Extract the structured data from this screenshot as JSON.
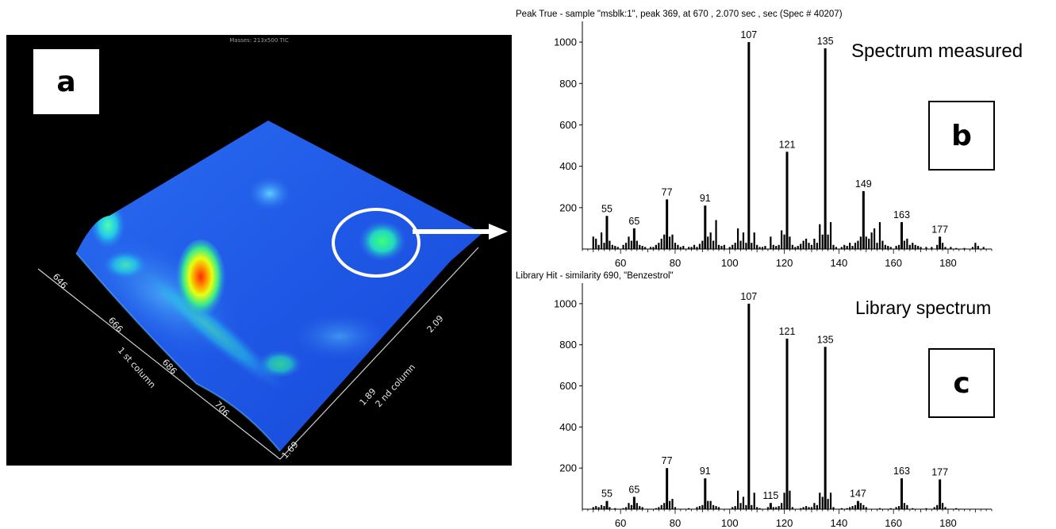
{
  "surface": {
    "header": "Masses: 213x500 TIC",
    "panel_label": "a",
    "axis1_title": "1 st column",
    "axis2_title": "2 nd column",
    "axis1_ticks": [
      "646",
      "666",
      "686",
      "706"
    ],
    "axis2_ticks": [
      "1.69",
      "1.89",
      "2.09"
    ]
  },
  "measured": {
    "title": "Peak True - sample \"msblk:1\", peak 369, at 670 , 2.070 sec , sec (Spec # 40207)",
    "caption": "Spectrum measured",
    "panel_label": "b"
  },
  "library": {
    "title": "Library Hit - similarity 690, \"Benzestrol\"",
    "caption": "Library spectrum",
    "panel_label": "c"
  },
  "chart_data": [
    {
      "type": "bar",
      "title": "Peak True - sample \"msblk:1\", peak 369, at 670 , 2.070 sec , sec (Spec # 40207)",
      "xlim": [
        46,
        196
      ],
      "ylim": [
        0,
        1100
      ],
      "xticks": [
        60,
        80,
        100,
        120,
        140,
        160,
        180
      ],
      "yticks": [
        200,
        400,
        600,
        800,
        1000
      ],
      "peak_labels": [
        55,
        65,
        77,
        91,
        107,
        121,
        135,
        149,
        163,
        177
      ],
      "points": [
        [
          50,
          60
        ],
        [
          51,
          50
        ],
        [
          52,
          20
        ],
        [
          53,
          80
        ],
        [
          54,
          30
        ],
        [
          55,
          160
        ],
        [
          56,
          40
        ],
        [
          57,
          20
        ],
        [
          58,
          15
        ],
        [
          59,
          10
        ],
        [
          61,
          20
        ],
        [
          62,
          30
        ],
        [
          63,
          60
        ],
        [
          64,
          40
        ],
        [
          65,
          100
        ],
        [
          66,
          40
        ],
        [
          67,
          20
        ],
        [
          68,
          15
        ],
        [
          69,
          10
        ],
        [
          71,
          10
        ],
        [
          72,
          10
        ],
        [
          73,
          20
        ],
        [
          74,
          30
        ],
        [
          75,
          50
        ],
        [
          76,
          70
        ],
        [
          77,
          240
        ],
        [
          78,
          60
        ],
        [
          79,
          70
        ],
        [
          80,
          30
        ],
        [
          81,
          20
        ],
        [
          82,
          10
        ],
        [
          83,
          15
        ],
        [
          85,
          10
        ],
        [
          86,
          10
        ],
        [
          87,
          20
        ],
        [
          88,
          10
        ],
        [
          89,
          25
        ],
        [
          90,
          40
        ],
        [
          91,
          210
        ],
        [
          92,
          60
        ],
        [
          93,
          80
        ],
        [
          94,
          40
        ],
        [
          95,
          140
        ],
        [
          96,
          20
        ],
        [
          97,
          15
        ],
        [
          98,
          20
        ],
        [
          100,
          10
        ],
        [
          101,
          20
        ],
        [
          102,
          30
        ],
        [
          103,
          100
        ],
        [
          104,
          40
        ],
        [
          105,
          80
        ],
        [
          106,
          30
        ],
        [
          107,
          1000
        ],
        [
          108,
          30
        ],
        [
          109,
          80
        ],
        [
          110,
          20
        ],
        [
          111,
          10
        ],
        [
          112,
          10
        ],
        [
          113,
          15
        ],
        [
          115,
          60
        ],
        [
          116,
          20
        ],
        [
          117,
          15
        ],
        [
          118,
          20
        ],
        [
          119,
          90
        ],
        [
          120,
          70
        ],
        [
          121,
          470
        ],
        [
          122,
          60
        ],
        [
          123,
          20
        ],
        [
          124,
          10
        ],
        [
          125,
          15
        ],
        [
          126,
          25
        ],
        [
          127,
          40
        ],
        [
          128,
          50
        ],
        [
          129,
          30
        ],
        [
          130,
          20
        ],
        [
          131,
          50
        ],
        [
          132,
          30
        ],
        [
          133,
          120
        ],
        [
          134,
          70
        ],
        [
          135,
          970
        ],
        [
          136,
          70
        ],
        [
          137,
          130
        ],
        [
          138,
          20
        ],
        [
          139,
          10
        ],
        [
          141,
          10
        ],
        [
          142,
          20
        ],
        [
          143,
          15
        ],
        [
          144,
          30
        ],
        [
          145,
          15
        ],
        [
          146,
          30
        ],
        [
          147,
          40
        ],
        [
          148,
          60
        ],
        [
          149,
          280
        ],
        [
          150,
          60
        ],
        [
          151,
          50
        ],
        [
          152,
          80
        ],
        [
          153,
          100
        ],
        [
          154,
          30
        ],
        [
          155,
          130
        ],
        [
          156,
          40
        ],
        [
          157,
          20
        ],
        [
          158,
          15
        ],
        [
          159,
          10
        ],
        [
          161,
          15
        ],
        [
          162,
          20
        ],
        [
          163,
          130
        ],
        [
          164,
          40
        ],
        [
          165,
          50
        ],
        [
          166,
          20
        ],
        [
          167,
          30
        ],
        [
          168,
          20
        ],
        [
          169,
          15
        ],
        [
          170,
          10
        ],
        [
          172,
          10
        ],
        [
          174,
          10
        ],
        [
          176,
          20
        ],
        [
          177,
          60
        ],
        [
          178,
          30
        ],
        [
          179,
          10
        ],
        [
          181,
          10
        ],
        [
          183,
          5
        ],
        [
          186,
          5
        ],
        [
          189,
          10
        ],
        [
          190,
          30
        ],
        [
          191,
          15
        ],
        [
          193,
          10
        ]
      ]
    },
    {
      "type": "bar",
      "title": "Library Hit - similarity 690, \"Benzestrol\"",
      "xlim": [
        46,
        196
      ],
      "ylim": [
        0,
        1100
      ],
      "xticks": [
        60,
        80,
        100,
        120,
        140,
        160,
        180
      ],
      "yticks": [
        200,
        400,
        600,
        800,
        1000
      ],
      "peak_labels": [
        55,
        65,
        77,
        91,
        107,
        115,
        121,
        135,
        147,
        163,
        177
      ],
      "points": [
        [
          50,
          10
        ],
        [
          51,
          15
        ],
        [
          52,
          10
        ],
        [
          53,
          20
        ],
        [
          54,
          15
        ],
        [
          55,
          40
        ],
        [
          56,
          10
        ],
        [
          58,
          5
        ],
        [
          61,
          5
        ],
        [
          62,
          10
        ],
        [
          63,
          30
        ],
        [
          64,
          20
        ],
        [
          65,
          60
        ],
        [
          66,
          30
        ],
        [
          67,
          15
        ],
        [
          68,
          10
        ],
        [
          73,
          5
        ],
        [
          74,
          10
        ],
        [
          75,
          20
        ],
        [
          76,
          30
        ],
        [
          77,
          200
        ],
        [
          78,
          40
        ],
        [
          79,
          50
        ],
        [
          80,
          10
        ],
        [
          85,
          5
        ],
        [
          88,
          10
        ],
        [
          89,
          15
        ],
        [
          90,
          20
        ],
        [
          91,
          150
        ],
        [
          92,
          40
        ],
        [
          93,
          40
        ],
        [
          94,
          20
        ],
        [
          95,
          15
        ],
        [
          96,
          10
        ],
        [
          101,
          10
        ],
        [
          102,
          15
        ],
        [
          103,
          90
        ],
        [
          104,
          30
        ],
        [
          105,
          60
        ],
        [
          106,
          20
        ],
        [
          107,
          1000
        ],
        [
          108,
          20
        ],
        [
          109,
          80
        ],
        [
          110,
          10
        ],
        [
          111,
          5
        ],
        [
          114,
          10
        ],
        [
          115,
          30
        ],
        [
          116,
          10
        ],
        [
          117,
          10
        ],
        [
          118,
          15
        ],
        [
          119,
          30
        ],
        [
          120,
          80
        ],
        [
          121,
          830
        ],
        [
          122,
          90
        ],
        [
          123,
          10
        ],
        [
          126,
          5
        ],
        [
          127,
          10
        ],
        [
          128,
          15
        ],
        [
          129,
          10
        ],
        [
          130,
          10
        ],
        [
          131,
          30
        ],
        [
          132,
          20
        ],
        [
          133,
          80
        ],
        [
          134,
          60
        ],
        [
          135,
          790
        ],
        [
          136,
          50
        ],
        [
          137,
          80
        ],
        [
          138,
          10
        ],
        [
          141,
          5
        ],
        [
          143,
          5
        ],
        [
          144,
          10
        ],
        [
          145,
          15
        ],
        [
          146,
          20
        ],
        [
          147,
          40
        ],
        [
          148,
          30
        ],
        [
          149,
          20
        ],
        [
          150,
          10
        ],
        [
          155,
          5
        ],
        [
          159,
          5
        ],
        [
          161,
          10
        ],
        [
          162,
          15
        ],
        [
          163,
          150
        ],
        [
          164,
          30
        ],
        [
          165,
          20
        ],
        [
          167,
          5
        ],
        [
          172,
          5
        ],
        [
          175,
          10
        ],
        [
          176,
          20
        ],
        [
          177,
          145
        ],
        [
          178,
          30
        ],
        [
          179,
          10
        ],
        [
          183,
          5
        ]
      ]
    }
  ]
}
